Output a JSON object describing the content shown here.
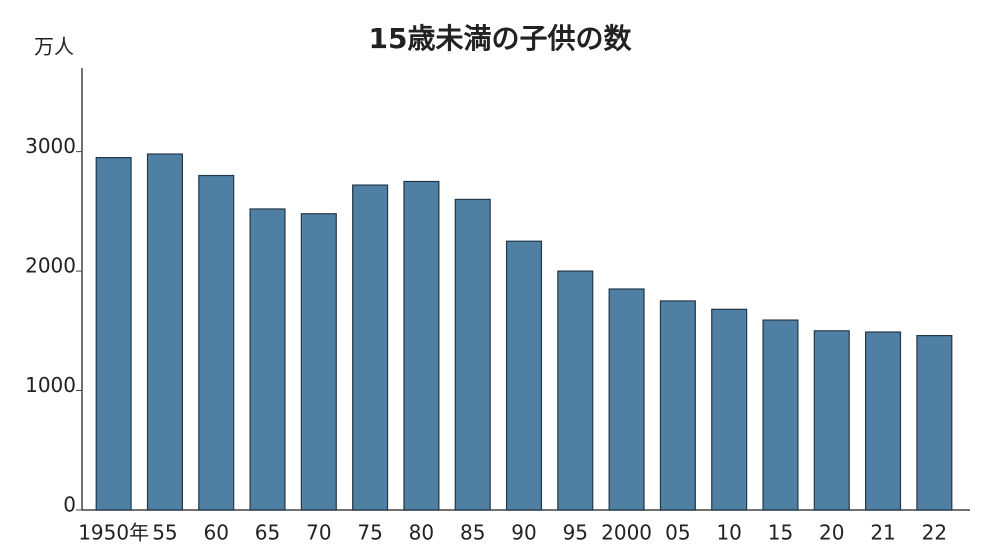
{
  "chart_data": {
    "type": "bar",
    "title": "15歳未満の子供の数",
    "y_label": "万人",
    "categories": [
      "1950年",
      "55",
      "60",
      "65",
      "70",
      "75",
      "80",
      "85",
      "90",
      "95",
      "2000",
      "05",
      "10",
      "15",
      "20",
      "21",
      "22"
    ],
    "values": [
      2950,
      2980,
      2800,
      2520,
      2480,
      2720,
      2750,
      2600,
      2250,
      2000,
      1850,
      1750,
      1680,
      1590,
      1500,
      1490,
      1460
    ],
    "color": "#4f7fa3",
    "ylim": [
      0,
      3700
    ],
    "yticks": [
      0,
      1000,
      2000,
      3000
    ],
    "grid": false
  }
}
